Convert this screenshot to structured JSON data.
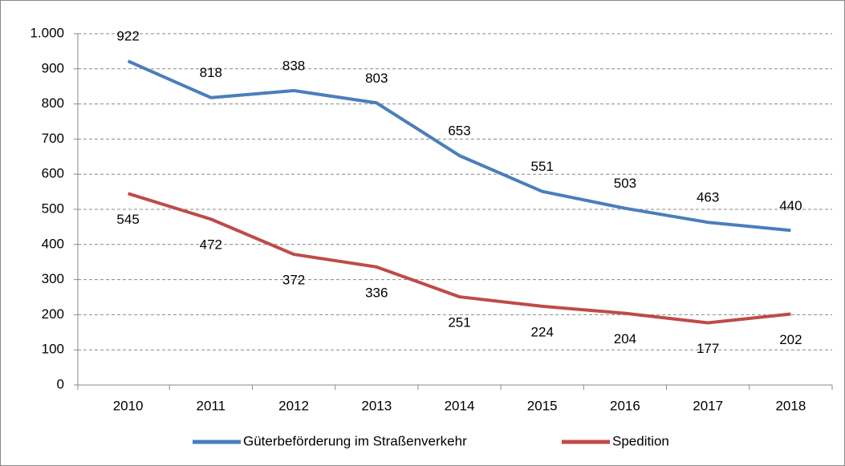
{
  "chart_data": {
    "type": "line",
    "categories": [
      "2010",
      "2011",
      "2012",
      "2013",
      "2014",
      "2015",
      "2016",
      "2017",
      "2018"
    ],
    "series": [
      {
        "name": "Güterbeförderung im Straßenverkehr",
        "color": "#4a7ebb",
        "values": [
          922,
          818,
          838,
          803,
          653,
          551,
          503,
          463,
          440
        ]
      },
      {
        "name": "Spedition",
        "color": "#be4b48",
        "values": [
          545,
          472,
          372,
          336,
          251,
          224,
          204,
          177,
          202
        ]
      }
    ],
    "ylim": [
      0,
      1000
    ],
    "yticks": [
      0,
      100,
      200,
      300,
      400,
      500,
      600,
      700,
      800,
      900,
      {
        "value": 1000,
        "label": "1.000"
      }
    ],
    "grid": true,
    "legend": "bottom"
  }
}
